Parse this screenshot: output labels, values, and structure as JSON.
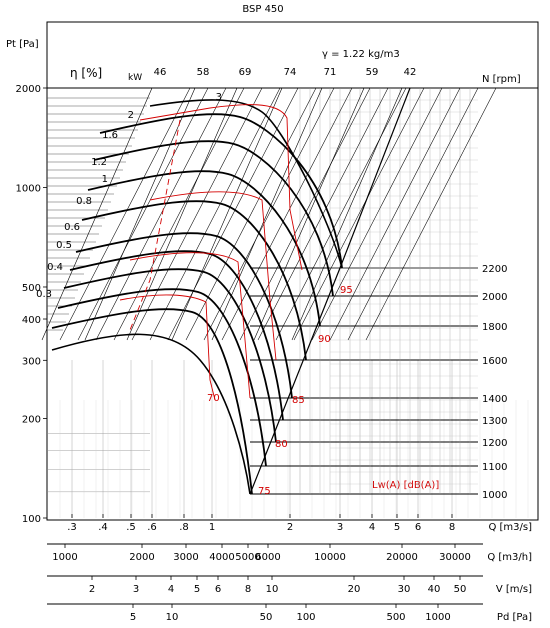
{
  "chart_data": {
    "type": "line",
    "title": "BSP 450",
    "ylabel": "Pt [Pa]",
    "eta_label": "η [%]",
    "kw_label": "kW",
    "density_label": "γ = 1.22 kg/m3",
    "n_label": "N [rpm]",
    "lw_label": "Lw(A) [dB(A)]",
    "y_scale": "log",
    "ylim": [
      100,
      2000
    ],
    "y_ticks": [
      {
        "v": 2000,
        "label": "2000"
      },
      {
        "v": 1000,
        "label": "1000"
      },
      {
        "v": 500,
        "label": "500"
      },
      {
        "v": 400,
        "label": "400"
      },
      {
        "v": 300,
        "label": "300"
      },
      {
        "v": 200,
        "label": "200"
      },
      {
        "v": 100,
        "label": "100"
      }
    ],
    "efficiency_top_labels": [
      "46",
      "58",
      "69",
      "74",
      "71",
      "59",
      "42"
    ],
    "power_labels": [
      "3",
      "2",
      "1.6",
      "1.2",
      "1",
      "0.8",
      "0.6",
      "0.5",
      "0.4",
      "0.3"
    ],
    "rpm_labels": [
      "2200",
      "2000",
      "1800",
      "1600",
      "1400",
      "1300",
      "1200",
      "1100",
      "1000"
    ],
    "noise_labels": [
      "95",
      "90",
      "85",
      "80",
      "75",
      "70"
    ],
    "grid": true,
    "axes": [
      {
        "label": "Q [m3/s]",
        "ticks": [
          ".3",
          ".4",
          ".5",
          ".6",
          ".8",
          "1",
          "2",
          "3",
          "4",
          "5",
          "6",
          "8"
        ]
      },
      {
        "label": "Q [m3/h]",
        "ticks": [
          "1000",
          "2000",
          "3000",
          "4000",
          "5000",
          "6000",
          "10000",
          "20000",
          "30000"
        ]
      },
      {
        "label": "V [m/s]",
        "ticks": [
          "2",
          "3",
          "4",
          "5",
          "6",
          "8",
          "10",
          "20",
          "30",
          "40",
          "50"
        ]
      },
      {
        "label": "Pd [Pa]",
        "ticks": [
          "5",
          "10",
          "50",
          "100",
          "500",
          "1000"
        ]
      }
    ]
  }
}
